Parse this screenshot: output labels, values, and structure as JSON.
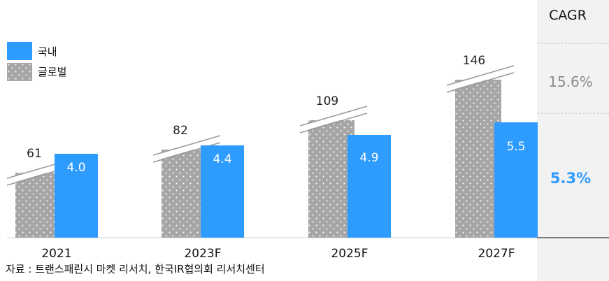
{
  "chart_data": {
    "type": "bar",
    "categories": [
      "2021",
      "2023F",
      "2025F",
      "2027F"
    ],
    "series": [
      {
        "name": "국내",
        "values": [
          4.0,
          4.4,
          4.9,
          5.5
        ],
        "labels": [
          "4.0",
          "4.4",
          "4.9",
          "5.5"
        ],
        "color": "#2e9bff"
      },
      {
        "name": "글로벌",
        "values": [
          61,
          82,
          109,
          146
        ],
        "labels": [
          "61",
          "82",
          "109",
          "146"
        ],
        "color": "#a6a6a6",
        "pattern": "dotted",
        "axis_break": true
      }
    ],
    "legend": {
      "placement": "top-left"
    },
    "cagr": {
      "header": "CAGR",
      "global": {
        "value": "15.6%",
        "color": "#8c8c8c"
      },
      "domestic": {
        "value": "5.3%",
        "color": "#2e9bff"
      }
    },
    "grid": false
  },
  "source": "자료 : 트랜스패린시 마켓 리서치, 한국IR협의회 리서치센터"
}
